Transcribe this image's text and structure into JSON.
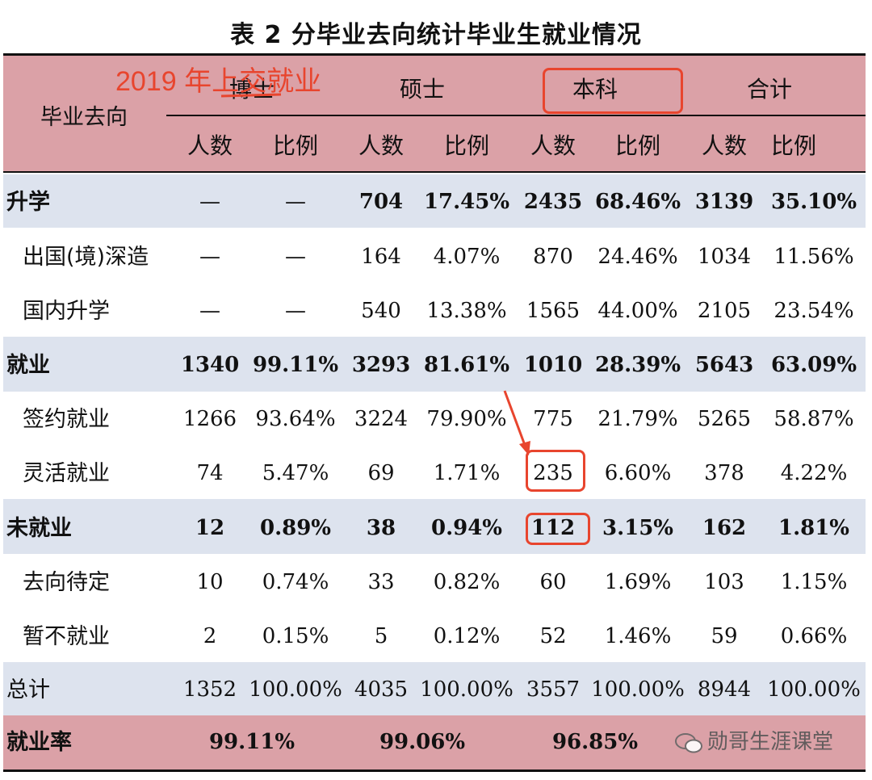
{
  "title": "表 2  分毕业去向统计毕业生就业情况",
  "annotation": "2019 年上交就业",
  "watermark": "勋哥生涯课堂",
  "header": {
    "row_label": "毕业去向",
    "groups": [
      "博士",
      "硕士",
      "本科",
      "合计"
    ],
    "sub": [
      "人数",
      "比例",
      "人数",
      "比例",
      "人数",
      "比例",
      "人数",
      "比例"
    ]
  },
  "rows": [
    {
      "label": "升学",
      "cells": [
        "—",
        "—",
        "704",
        "17.45%",
        "2435",
        "68.46%",
        "3139",
        "35.10%"
      ]
    },
    {
      "label": "出国(境)深造",
      "cells": [
        "—",
        "—",
        "164",
        "4.07%",
        "870",
        "24.46%",
        "1034",
        "11.56%"
      ]
    },
    {
      "label": "国内升学",
      "cells": [
        "—",
        "—",
        "540",
        "13.38%",
        "1565",
        "44.00%",
        "2105",
        "23.54%"
      ]
    },
    {
      "label": "就业",
      "cells": [
        "1340",
        "99.11%",
        "3293",
        "81.61%",
        "1010",
        "28.39%",
        "5643",
        "63.09%"
      ]
    },
    {
      "label": "签约就业",
      "cells": [
        "1266",
        "93.64%",
        "3224",
        "79.90%",
        "775",
        "21.79%",
        "5265",
        "58.87%"
      ]
    },
    {
      "label": "灵活就业",
      "cells": [
        "74",
        "5.47%",
        "69",
        "1.71%",
        "235",
        "6.60%",
        "378",
        "4.22%"
      ]
    },
    {
      "label": "未就业",
      "cells": [
        "12",
        "0.89%",
        "38",
        "0.94%",
        "112",
        "3.15%",
        "162",
        "1.81%"
      ]
    },
    {
      "label": "去向待定",
      "cells": [
        "10",
        "0.74%",
        "33",
        "0.82%",
        "60",
        "1.69%",
        "103",
        "1.15%"
      ]
    },
    {
      "label": "暂不就业",
      "cells": [
        "2",
        "0.15%",
        "5",
        "0.12%",
        "52",
        "1.46%",
        "59",
        "0.66%"
      ]
    },
    {
      "label": "总计",
      "cells": [
        "1352",
        "100.00%",
        "4035",
        "100.00%",
        "3557",
        "100.00%",
        "8944",
        "100.00%"
      ]
    }
  ],
  "rate_row": {
    "label": "就业率",
    "values": [
      "99.11%",
      "99.06%",
      "96.85%"
    ]
  },
  "colors": {
    "header_bg": "#dba1a7",
    "band_bg": "#dde3ee",
    "annotation": "#e8452e"
  }
}
